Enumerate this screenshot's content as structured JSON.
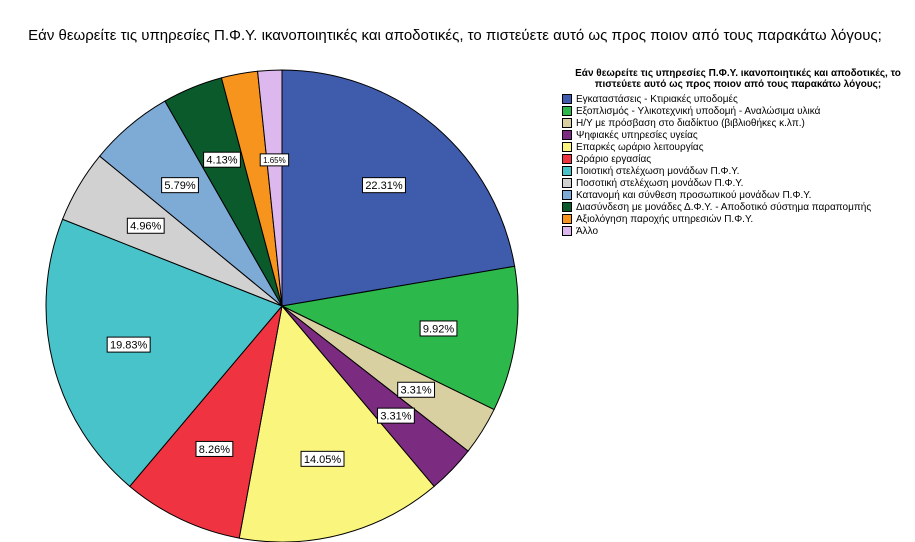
{
  "chart_data": {
    "type": "pie",
    "title": "Εάν θεωρείτε τις υπηρεσίες Π.Φ.Υ. ικανοποιητικές και αποδοτικές, το πιστεύετε αυτό ως προς ποιον από τους παρακάτω λόγους;",
    "legend_title": "Εάν θεωρείτε τις υπηρεσίες Π.Φ.Υ. ικανοποιητικές και αποδοτικές, το πιστεύετε αυτό ως προς ποιον από τους παρακάτω λόγους;",
    "legend_position": "right",
    "categories": [
      "Εγκαταστάσεις - Κτιριακές υποδομές",
      "Εξοπλισμός - Υλικοτεχνική υποδομή - Αναλώσιμα υλικά",
      "Η/Υ με πρόσβαση στο διαδίκτυο (βιβλιοθήκες κ.λπ.)",
      "Ψηφιακές υπηρεσίες υγείας",
      "Επαρκές ωράριο λειτουργίας",
      "Ωράριο εργασίας",
      "Ποιοτική στελέχωση μονάδων Π.Φ.Υ.",
      "Ποσοτική στελέχωση μονάδων Π.Φ.Υ.",
      "Κατανομή και σύνθεση προσωπικού μονάδων Π.Φ.Υ.",
      "Διασύνδεση με μονάδες Δ.Φ.Υ. - Αποδοτικό σύστημα παραπομπής",
      "Αξιολόγηση παροχής υπηρεσιών Π.Φ.Υ.",
      "Άλλο"
    ],
    "values": [
      22.31,
      9.92,
      3.31,
      3.31,
      14.05,
      8.26,
      19.83,
      4.96,
      5.79,
      4.13,
      2.48,
      1.65
    ],
    "labels": [
      "22.31%",
      "9.92%",
      "3.31%",
      "3.31%",
      "14.05%",
      "8.26%",
      "19.83%",
      "4.96%",
      "5.79%",
      "4.13%",
      "",
      "1.65%"
    ],
    "colors": [
      "#3f5bab",
      "#2db84b",
      "#d8d0a0",
      "#7b2c80",
      "#faf57c",
      "#ef3340",
      "#48c3c9",
      "#d1d1d1",
      "#7eaad6",
      "#0a5a2c",
      "#f7941d",
      "#dcb8ee"
    ]
  }
}
